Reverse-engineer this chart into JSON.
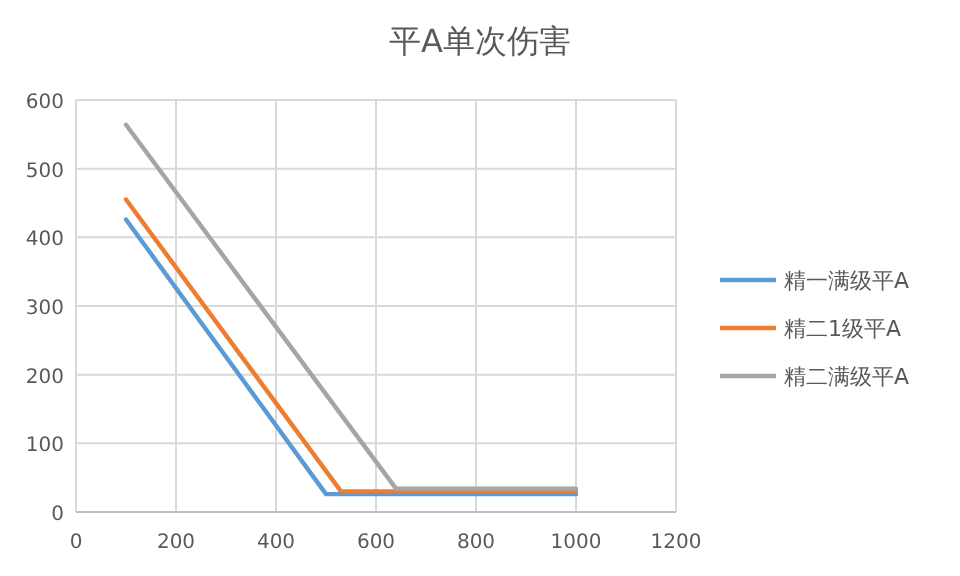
{
  "chart_data": {
    "type": "line",
    "title": "平A单次伤害",
    "series": [
      {
        "name": "精一满级平A",
        "color": "#5b9bd5",
        "x": [
          100,
          500,
          1000
        ],
        "values": [
          426,
          26,
          26
        ]
      },
      {
        "name": "精二1级平A",
        "color": "#ed7d31",
        "x": [
          100,
          530,
          1000
        ],
        "values": [
          455,
          30,
          30
        ]
      },
      {
        "name": "精二满级平A",
        "color": "#a5a5a5",
        "x": [
          100,
          640,
          1000
        ],
        "values": [
          564,
          34,
          34
        ]
      }
    ],
    "xlim": [
      0,
      1200
    ],
    "xticks": [
      0,
      200,
      400,
      600,
      800,
      1000,
      1200
    ],
    "ylim": [
      0,
      600
    ],
    "yticks": [
      0,
      100,
      200,
      300,
      400,
      500,
      600
    ],
    "grid": true,
    "legend": "right",
    "marker": "none",
    "line_style": "solid"
  }
}
